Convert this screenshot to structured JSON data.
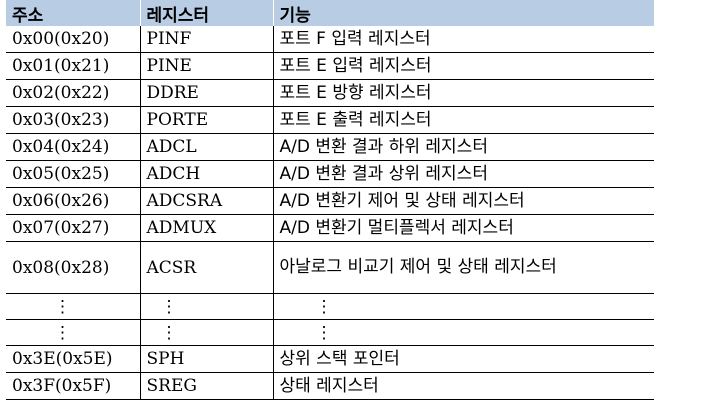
{
  "table": {
    "headers": [
      "주소",
      "레지스터",
      "기능"
    ],
    "rows": [
      {
        "address": "0x00(0x20)",
        "register": "PINF",
        "function": "포트 F 입력 레지스터"
      },
      {
        "address": "0x01(0x21)",
        "register": "PINE",
        "function": "포트 E 입력 레지스터"
      },
      {
        "address": "0x02(0x22)",
        "register": "DDRE",
        "function": "포트 E 방향 레지스터"
      },
      {
        "address": "0x03(0x23)",
        "register": "PORTE",
        "function": "포트 E 출력 레지스터"
      },
      {
        "address": "0x04(0x24)",
        "register": "ADCL",
        "function": "A/D 변환 결과 하위 레지스터"
      },
      {
        "address": "0x05(0x25)",
        "register": "ADCH",
        "function": "A/D 변환 결과 상위 레지스터"
      },
      {
        "address": "0x06(0x26)",
        "register": "ADCSRA",
        "function": "A/D 변환기 제어 및 상태 레지스터"
      },
      {
        "address": "0x07(0x27)",
        "register": "ADMUX",
        "function": "A/D 변환기 멀티플렉서 레지스터"
      },
      {
        "address": "0x08(0x28)",
        "register": "ACSR",
        "function": "아날로그 비교기 제어 및 상태 레지스터"
      },
      {
        "address": "⋮",
        "register": "⋮",
        "function": "⋮"
      },
      {
        "address": "⋮",
        "register": "⋮",
        "function": "⋮"
      },
      {
        "address": "0x3E(0x5E)",
        "register": "SPH",
        "function": "상위 스택 포인터"
      },
      {
        "address": "0x3F(0x5F)",
        "register": "SREG",
        "function": "상태 레지스터"
      }
    ]
  }
}
